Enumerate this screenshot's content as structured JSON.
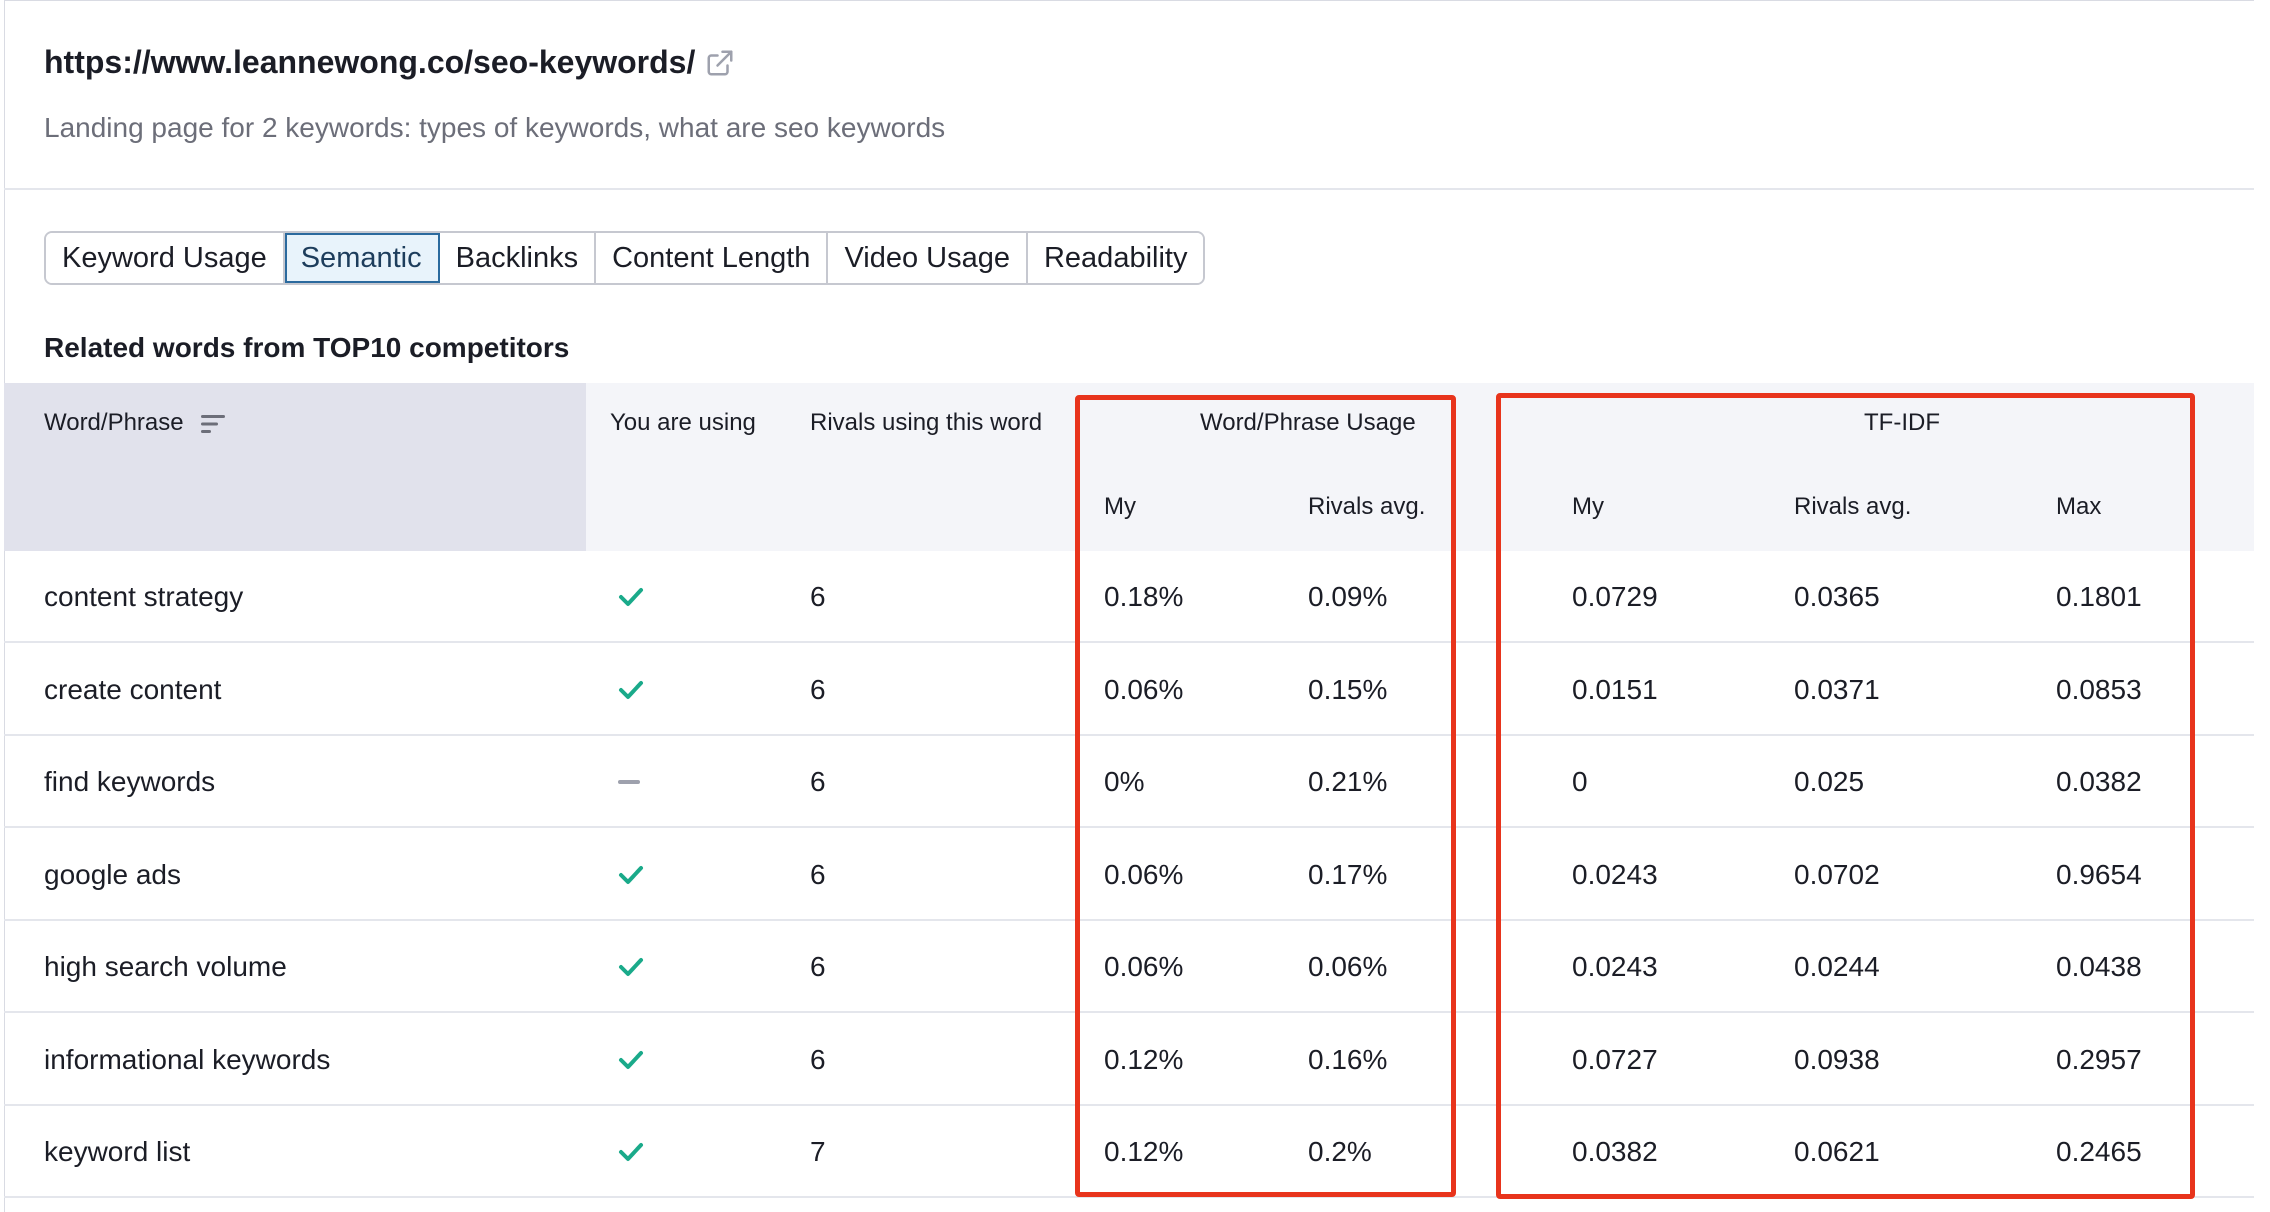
{
  "header": {
    "url": "https://www.leannewong.co/seo-keywords/",
    "external_link_icon": "external-link-icon",
    "subtitle": "Landing page for 2 keywords: types of keywords, what are seo keywords"
  },
  "tabs": [
    {
      "label": "Keyword Usage",
      "active": false
    },
    {
      "label": "Semantic",
      "active": true
    },
    {
      "label": "Backlinks",
      "active": false
    },
    {
      "label": "Content Length",
      "active": false
    },
    {
      "label": "Video Usage",
      "active": false
    },
    {
      "label": "Readability",
      "active": false
    }
  ],
  "section_title": "Related words from TOP10 competitors",
  "table": {
    "headers": {
      "word_phrase": "Word/Phrase",
      "you_are_using": "You are using",
      "rivals_using": "Rivals using this word",
      "usage_group": "Word/Phrase Usage",
      "usage_my": "My",
      "usage_rivals_avg": "Rivals avg.",
      "tfidf_group": "TF-IDF",
      "tfidf_my": "My",
      "tfidf_rivals_avg": "Rivals avg.",
      "tfidf_max": "Max"
    },
    "rows": [
      {
        "word": "content strategy",
        "using": "check",
        "rivals": "6",
        "usage_my": "0.18%",
        "usage_avg": "0.09%",
        "tfidf_my": "0.0729",
        "tfidf_avg": "0.0365",
        "tfidf_max": "0.1801"
      },
      {
        "word": "create content",
        "using": "check",
        "rivals": "6",
        "usage_my": "0.06%",
        "usage_avg": "0.15%",
        "tfidf_my": "0.0151",
        "tfidf_avg": "0.0371",
        "tfidf_max": "0.0853"
      },
      {
        "word": "find keywords",
        "using": "dash",
        "rivals": "6",
        "usage_my": "0%",
        "usage_avg": "0.21%",
        "tfidf_my": "0",
        "tfidf_avg": "0.025",
        "tfidf_max": "0.0382"
      },
      {
        "word": "google ads",
        "using": "check",
        "rivals": "6",
        "usage_my": "0.06%",
        "usage_avg": "0.17%",
        "tfidf_my": "0.0243",
        "tfidf_avg": "0.0702",
        "tfidf_max": "0.9654"
      },
      {
        "word": "high search volume",
        "using": "check",
        "rivals": "6",
        "usage_my": "0.06%",
        "usage_avg": "0.06%",
        "tfidf_my": "0.0243",
        "tfidf_avg": "0.0244",
        "tfidf_max": "0.0438"
      },
      {
        "word": "informational keywords",
        "using": "check",
        "rivals": "6",
        "usage_my": "0.12%",
        "usage_avg": "0.16%",
        "tfidf_my": "0.0727",
        "tfidf_avg": "0.0938",
        "tfidf_max": "0.2957"
      },
      {
        "word": "keyword list",
        "using": "check",
        "rivals": "7",
        "usage_my": "0.12%",
        "usage_avg": "0.2%",
        "tfidf_my": "0.0382",
        "tfidf_avg": "0.0621",
        "tfidf_max": "0.2465"
      }
    ]
  },
  "colors": {
    "check": "#1aaa8a",
    "highlight": "#e8341c",
    "active_tab_border": "#2b6a9e"
  }
}
